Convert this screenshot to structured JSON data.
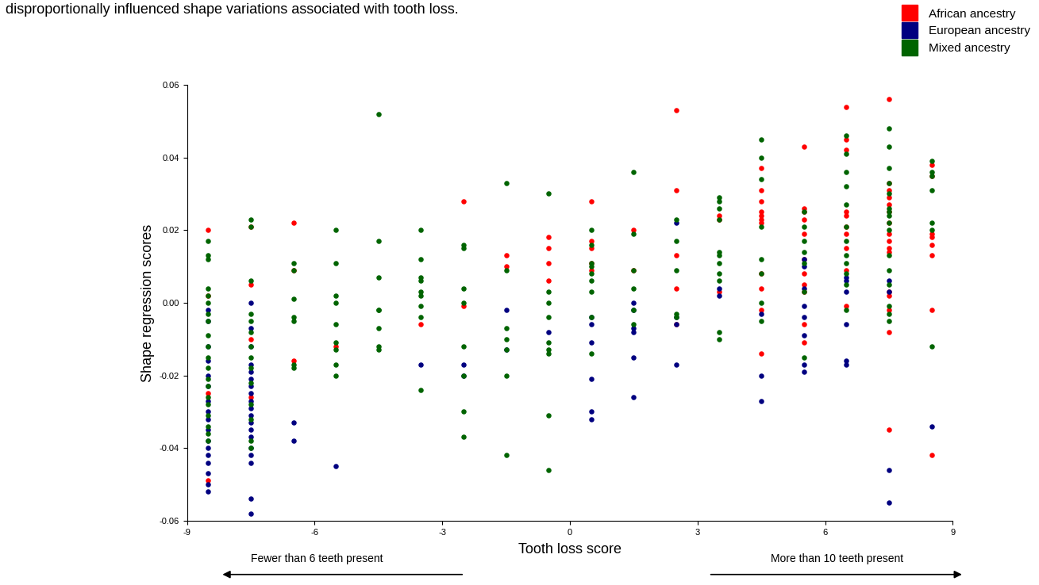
{
  "chart_data": {
    "type": "scatter",
    "title": "disproportionally influenced shape variations associated with tooth loss.",
    "x_label": "Tooth loss score",
    "y_label": "Shape regression scores",
    "annotations": [
      "Fewer than 6 teeth present",
      "More than 10 teeth present"
    ],
    "xlim": [
      -9,
      9
    ],
    "xticks": [
      -9,
      -6,
      -3,
      0,
      3,
      6,
      9
    ],
    "ylim": [
      -0.06,
      0.06
    ],
    "yticks": [
      -0.06,
      -0.04,
      -0.02,
      {
        "value": 0,
        "label": "0.00"
      },
      0.02,
      0.04,
      0.06
    ],
    "grid": false,
    "legend": "upper right",
    "marker": "o",
    "series": [
      {
        "name": "African ancestry",
        "color": "#ff0000",
        "x": [
          -8.5,
          -8.5,
          -8.5,
          -8.5,
          -7.5,
          -7.5,
          -7.5,
          -7.5,
          -6.5,
          -6.5,
          -6.5,
          -5.5,
          -3.5,
          -2.5,
          -2.5,
          -1.5,
          -1.5,
          -0.5,
          -0.5,
          -0.5,
          -0.5,
          0.5,
          0.5,
          0.5,
          0.5,
          0.5,
          1.5,
          1.5,
          2.5,
          2.5,
          2.5,
          2.5,
          2.5,
          3.5,
          3.5,
          3.5,
          4.5,
          4.5,
          4.5,
          4.5,
          4.5,
          4.5,
          4.5,
          4.5,
          4.5,
          4.5,
          4.5,
          5.5,
          5.5,
          5.5,
          5.5,
          5.5,
          5.5,
          5.5,
          5.5,
          5.5,
          5.5,
          5.5,
          6.5,
          6.5,
          6.5,
          6.5,
          6.5,
          6.5,
          6.5,
          6.5,
          6.5,
          6.5,
          7.5,
          7.5,
          7.5,
          7.5,
          7.5,
          7.5,
          7.5,
          7.5,
          7.5,
          7.5,
          7.5,
          7.5,
          7.5,
          7.5,
          7.5,
          7.5,
          8.5,
          8.5,
          8.5,
          8.5,
          8.5,
          8.5,
          8.5,
          8.5
        ],
        "values": [
          0.02,
          0.002,
          -0.025,
          -0.049,
          0.021,
          0.005,
          -0.01,
          -0.026,
          0.022,
          0.009,
          -0.016,
          -0.012,
          -0.006,
          0.028,
          -0.001,
          0.013,
          0.01,
          0.018,
          0.015,
          0.011,
          0.006,
          0.028,
          0.017,
          0.015,
          0.011,
          0.009,
          0.02,
          0.009,
          0.053,
          0.031,
          0.013,
          0.004,
          -0.006,
          0.024,
          0.023,
          0.003,
          0.037,
          0.031,
          0.028,
          0.025,
          0.024,
          0.023,
          0.022,
          0.008,
          0.004,
          -0.002,
          -0.014,
          0.043,
          0.026,
          0.025,
          0.023,
          0.019,
          0.012,
          0.008,
          0.005,
          0.003,
          -0.006,
          -0.011,
          0.054,
          0.045,
          0.042,
          0.025,
          0.024,
          0.021,
          0.019,
          0.015,
          0.009,
          -0.001,
          0.056,
          0.033,
          0.031,
          0.029,
          0.027,
          0.025,
          0.022,
          0.019,
          0.017,
          0.015,
          0.014,
          0.003,
          0.002,
          -0.002,
          -0.008,
          -0.035,
          0.038,
          0.035,
          0.019,
          0.018,
          0.016,
          0.013,
          -0.002,
          -0.042
        ]
      },
      {
        "name": "European ancestry",
        "color": "#000080",
        "x": [
          -8.5,
          -8.5,
          -8.5,
          -8.5,
          -8.5,
          -8.5,
          -8.5,
          -8.5,
          -8.5,
          -8.5,
          -8.5,
          -8.5,
          -8.5,
          -8.5,
          -8.5,
          -8.5,
          -8.5,
          -7.5,
          -7.5,
          -7.5,
          -7.5,
          -7.5,
          -7.5,
          -7.5,
          -7.5,
          -7.5,
          -7.5,
          -7.5,
          -7.5,
          -7.5,
          -7.5,
          -7.5,
          -7.5,
          -7.5,
          -7.5,
          -7.5,
          -6.5,
          -6.5,
          -5.5,
          -3.5,
          -2.5,
          -2.5,
          -1.5,
          -1.5,
          -0.5,
          0.5,
          0.5,
          0.5,
          0.5,
          0.5,
          0.5,
          1.5,
          1.5,
          1.5,
          1.5,
          1.5,
          1.5,
          2.5,
          2.5,
          2.5,
          2.5,
          3.5,
          3.5,
          4.5,
          4.5,
          4.5,
          5.5,
          5.5,
          5.5,
          5.5,
          5.5,
          5.5,
          5.5,
          5.5,
          6.5,
          6.5,
          6.5,
          6.5,
          6.5,
          6.5,
          7.5,
          7.5,
          7.5,
          7.5,
          8.5
        ],
        "values": [
          -0.002,
          -0.005,
          -0.012,
          -0.016,
          -0.02,
          -0.023,
          -0.027,
          -0.03,
          -0.032,
          -0.035,
          -0.038,
          -0.04,
          -0.042,
          -0.044,
          -0.047,
          -0.05,
          -0.052,
          0.0,
          -0.007,
          -0.012,
          -0.017,
          -0.019,
          -0.021,
          -0.023,
          -0.025,
          -0.027,
          -0.029,
          -0.031,
          -0.033,
          -0.035,
          -0.037,
          -0.04,
          -0.042,
          -0.044,
          -0.054,
          -0.058,
          -0.033,
          -0.038,
          -0.045,
          -0.017,
          -0.017,
          -0.02,
          -0.002,
          -0.013,
          -0.008,
          -0.004,
          -0.006,
          -0.011,
          -0.021,
          -0.03,
          -0.032,
          0.0,
          -0.002,
          -0.007,
          -0.008,
          -0.015,
          -0.026,
          0.022,
          -0.004,
          -0.006,
          -0.017,
          0.004,
          0.002,
          -0.003,
          -0.02,
          -0.027,
          0.012,
          0.01,
          0.004,
          -0.001,
          -0.004,
          -0.009,
          -0.017,
          -0.019,
          0.007,
          0.006,
          0.003,
          -0.006,
          -0.016,
          -0.017,
          0.006,
          0.003,
          -0.046,
          -0.055,
          -0.034
        ]
      },
      {
        "name": "Mixed ancestry",
        "color": "#006400",
        "x": [
          -8.5,
          -8.5,
          -8.5,
          -8.5,
          -8.5,
          -8.5,
          -8.5,
          -8.5,
          -8.5,
          -8.5,
          -8.5,
          -8.5,
          -8.5,
          -8.5,
          -8.5,
          -8.5,
          -8.5,
          -8.5,
          -8.5,
          -8.5,
          -7.5,
          -7.5,
          -7.5,
          -7.5,
          -7.5,
          -7.5,
          -7.5,
          -7.5,
          -7.5,
          -7.5,
          -7.5,
          -7.5,
          -7.5,
          -7.5,
          -6.5,
          -6.5,
          -6.5,
          -6.5,
          -6.5,
          -6.5,
          -6.5,
          -5.5,
          -5.5,
          -5.5,
          -5.5,
          -5.5,
          -5.5,
          -5.5,
          -5.5,
          -5.5,
          -4.5,
          -4.5,
          -4.5,
          -4.5,
          -4.5,
          -4.5,
          -4.5,
          -4.5,
          -3.5,
          -3.5,
          -3.5,
          -3.5,
          -3.5,
          -3.5,
          -3.5,
          -3.5,
          -3.5,
          -2.5,
          -2.5,
          -2.5,
          -2.5,
          -2.5,
          -2.5,
          -2.5,
          -2.5,
          -1.5,
          -1.5,
          -1.5,
          -1.5,
          -1.5,
          -1.5,
          -1.5,
          -0.5,
          -0.5,
          -0.5,
          -0.5,
          -0.5,
          -0.5,
          -0.5,
          -0.5,
          -0.5,
          0.5,
          0.5,
          0.5,
          0.5,
          0.5,
          0.5,
          0.5,
          0.5,
          0.5,
          1.5,
          1.5,
          1.5,
          1.5,
          1.5,
          1.5,
          2.5,
          2.5,
          2.5,
          2.5,
          2.5,
          3.5,
          3.5,
          3.5,
          3.5,
          3.5,
          3.5,
          3.5,
          3.5,
          3.5,
          3.5,
          3.5,
          4.5,
          4.5,
          4.5,
          4.5,
          4.5,
          4.5,
          4.5,
          4.5,
          5.5,
          5.5,
          5.5,
          5.5,
          5.5,
          5.5,
          5.5,
          6.5,
          6.5,
          6.5,
          6.5,
          6.5,
          6.5,
          6.5,
          6.5,
          6.5,
          6.5,
          6.5,
          6.5,
          7.5,
          7.5,
          7.5,
          7.5,
          7.5,
          7.5,
          7.5,
          7.5,
          7.5,
          7.5,
          7.5,
          7.5,
          7.5,
          7.5,
          7.5,
          7.5,
          8.5,
          8.5,
          8.5,
          8.5,
          8.5,
          8.5,
          8.5
        ],
        "values": [
          0.017,
          0.013,
          0.012,
          0.004,
          0.002,
          0.0,
          -0.003,
          -0.005,
          -0.009,
          -0.012,
          -0.015,
          -0.018,
          -0.021,
          -0.023,
          -0.026,
          -0.028,
          -0.031,
          -0.034,
          -0.036,
          -0.038,
          0.023,
          0.021,
          0.006,
          -0.003,
          -0.005,
          -0.008,
          -0.012,
          -0.015,
          -0.018,
          -0.022,
          -0.028,
          -0.032,
          -0.038,
          -0.04,
          0.011,
          0.009,
          0.001,
          -0.004,
          -0.005,
          -0.017,
          -0.018,
          0.02,
          0.011,
          0.002,
          0.0,
          -0.006,
          -0.011,
          -0.013,
          -0.017,
          -0.02,
          0.052,
          0.017,
          0.007,
          -0.002,
          -0.002,
          -0.007,
          -0.012,
          -0.013,
          0.02,
          0.012,
          0.007,
          0.006,
          0.003,
          0.002,
          -0.001,
          -0.004,
          -0.024,
          0.016,
          0.015,
          0.004,
          0.0,
          -0.012,
          -0.02,
          -0.03,
          -0.037,
          0.033,
          0.009,
          -0.007,
          -0.01,
          -0.013,
          -0.02,
          -0.042,
          0.03,
          0.003,
          0.0,
          -0.004,
          -0.011,
          -0.013,
          -0.014,
          -0.031,
          -0.046,
          0.02,
          0.016,
          0.011,
          0.01,
          0.008,
          0.006,
          0.003,
          -0.004,
          -0.014,
          0.036,
          0.019,
          0.009,
          0.004,
          -0.002,
          -0.006,
          0.023,
          0.017,
          0.009,
          -0.003,
          -0.004,
          0.029,
          0.028,
          0.026,
          0.023,
          0.014,
          0.013,
          0.011,
          0.008,
          0.006,
          -0.008,
          -0.01,
          0.045,
          0.04,
          0.034,
          0.021,
          0.012,
          0.008,
          0.0,
          -0.005,
          0.025,
          0.021,
          0.017,
          0.014,
          0.011,
          0.003,
          -0.015,
          0.046,
          0.041,
          0.036,
          0.032,
          0.027,
          0.021,
          0.017,
          0.013,
          0.011,
          0.008,
          0.005,
          -0.002,
          0.048,
          0.043,
          0.037,
          0.033,
          0.03,
          0.026,
          0.025,
          0.024,
          0.022,
          0.02,
          0.013,
          0.009,
          0.005,
          -0.001,
          -0.003,
          -0.005,
          0.039,
          0.036,
          0.035,
          0.031,
          0.022,
          0.02,
          -0.012
        ]
      }
    ]
  }
}
